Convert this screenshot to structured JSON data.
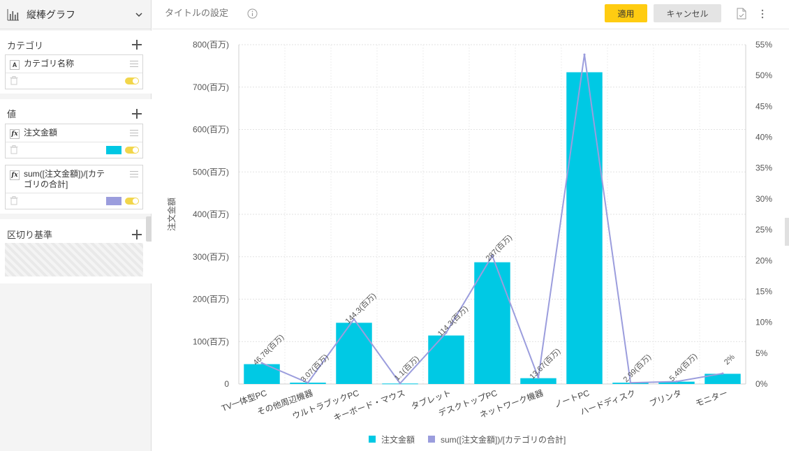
{
  "sidebar": {
    "chart_type_label": "縦棒グラフ",
    "chart_type_icon": "bar-chart-icon",
    "sections": {
      "category": {
        "title": "カテゴリ",
        "field": {
          "badge": "A",
          "name": "カテゴリ名称"
        }
      },
      "values": {
        "title": "値",
        "fields": [
          {
            "badge": "fx",
            "name": "注文金額",
            "color": "#00c7e3"
          },
          {
            "badge": "fx",
            "name": "sum([注文金額])/[カテゴリの合計]",
            "color": "#9b9ddd"
          }
        ]
      },
      "breakdown": {
        "title": "区切り基準"
      }
    }
  },
  "topbar": {
    "title_placeholder": "タイトルの設定",
    "apply_label": "適用",
    "cancel_label": "キャンセル"
  },
  "colors": {
    "bar": "#00c9e4",
    "line": "#9b9ddd",
    "apply": "#ffcc11",
    "toggle": "#f2d64b"
  },
  "chart_data": {
    "type": "bar",
    "title": "",
    "ylabel": "注文金額",
    "ylim": [
      0,
      800
    ],
    "y_ticks": [
      {
        "value": 0,
        "label": "0"
      },
      {
        "value": 100,
        "label": "100(百万)"
      },
      {
        "value": 200,
        "label": "200(百万)"
      },
      {
        "value": 300,
        "label": "300(百万)"
      },
      {
        "value": 400,
        "label": "400(百万)"
      },
      {
        "value": 500,
        "label": "500(百万)"
      },
      {
        "value": 600,
        "label": "600(百万)"
      },
      {
        "value": 700,
        "label": "700(百万)"
      },
      {
        "value": 800,
        "label": "800(百万)"
      }
    ],
    "y2lim": [
      0,
      55
    ],
    "y2_ticks": [
      "0%",
      "5%",
      "10%",
      "15%",
      "20%",
      "25%",
      "30%",
      "35%",
      "40%",
      "45%",
      "50%",
      "55%"
    ],
    "categories": [
      "TV一体型PC",
      "その他周辺機器",
      "ウルトラブックPC",
      "キーボード・マウス",
      "タブレット",
      "デスクトップPC",
      "ネットワーク機器",
      "ノートPC",
      "ハードディスク",
      "プリンタ",
      "モニター"
    ],
    "series": [
      {
        "name": "注文金額",
        "type": "bar",
        "axis": "left",
        "values": [
          46.78,
          3.07,
          144.3,
          1.1,
          114.3,
          287,
          13.67,
          735,
          2.99,
          5.49,
          24
        ],
        "labels": [
          "46.78(百万)",
          "3.07(百万)",
          "144.3(百万)",
          "1.1(百万)",
          "114.3(百万)",
          "287(百万)",
          "13.67(百万)",
          "",
          "2.99(百万)",
          "5.49(百万)",
          "2%"
        ]
      },
      {
        "name": "sum([注文金額])/[カテゴリの合計]",
        "type": "line",
        "axis": "right",
        "values": [
          3.4,
          0.2,
          10.5,
          0.1,
          8.3,
          20.8,
          1.0,
          53.4,
          0.2,
          0.4,
          1.7
        ]
      }
    ],
    "grid": true,
    "legend_position": "bottom"
  }
}
